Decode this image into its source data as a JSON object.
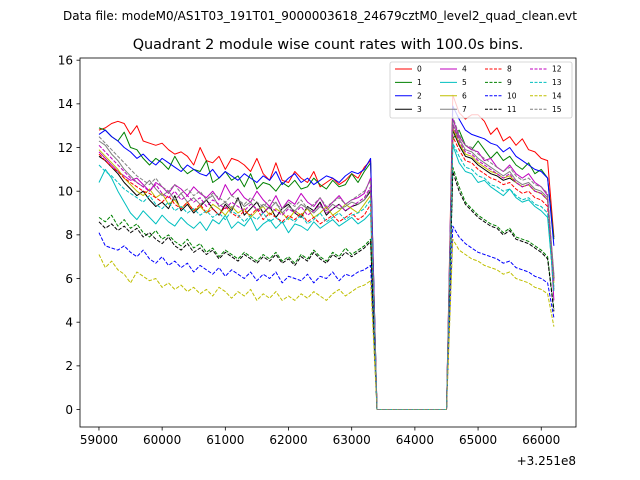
{
  "chart_data": {
    "type": "line",
    "suptitle": "Data file: modeM0/AS1T03_191T01_9000003618_24679cztM0_level2_quad_clean.evt",
    "title": "Quadrant 2 module wise count rates with 100.0s bins.",
    "xlabel": "",
    "ylabel": "",
    "x_offset_label": "+3.251e8",
    "xlim": [
      58700,
      66550
    ],
    "ylim": [
      -0.8,
      16.1
    ],
    "xticks": [
      59000,
      60000,
      61000,
      62000,
      63000,
      64000,
      65000,
      66000
    ],
    "yticks": [
      0,
      2,
      4,
      6,
      8,
      10,
      12,
      14,
      16
    ],
    "legend_position": "upper-right",
    "legend_columns": 4,
    "segments": [
      {
        "x_start": 59000,
        "x_end": 63300,
        "step": 100
      },
      {
        "x_start": 63400,
        "x_end": 64500,
        "step": 100
      },
      {
        "x_start": 64600,
        "x_end": 66200,
        "step": 100
      }
    ],
    "gap_value": 0,
    "series": [
      {
        "name": "0",
        "color": "#ff0000",
        "dash": "solid",
        "seg1": [
          12.8,
          12.9,
          13.1,
          13.2,
          13.1,
          12.6,
          13.0,
          12.3,
          12.2,
          12.1,
          12.2,
          11.9,
          11.7,
          11.8,
          11.6,
          11.2,
          12.0,
          11.4,
          11.3,
          11.6,
          11.0,
          11.5,
          11.4,
          11.2,
          10.9,
          11.5,
          10.8,
          10.5,
          11.3,
          10.5,
          10.4,
          10.9,
          10.6,
          10.4,
          10.9,
          10.2,
          10.4,
          10.6,
          10.3,
          10.5,
          10.8,
          10.6,
          11.1,
          11.4
        ],
        "seg3": [
          14.4,
          13.6,
          13.3,
          13.5,
          13.5,
          13.2,
          12.6,
          12.9,
          12.3,
          12.5,
          12.1,
          12.4,
          11.9,
          11.8,
          11.5,
          11.4,
          7.9
        ]
      },
      {
        "name": "1",
        "color": "#008000",
        "dash": "solid",
        "seg1": [
          12.9,
          12.8,
          12.5,
          12.3,
          12.7,
          12.0,
          11.9,
          11.5,
          11.2,
          11.5,
          11.3,
          11.0,
          11.6,
          11.1,
          10.8,
          11.0,
          10.9,
          11.4,
          10.4,
          10.6,
          10.9,
          10.5,
          10.7,
          10.2,
          10.8,
          10.1,
          10.4,
          10.3,
          10.0,
          10.4,
          10.2,
          10.5,
          10.1,
          10.2,
          10.6,
          10.3,
          10.1,
          10.5,
          10.2,
          10.3,
          10.8,
          10.4,
          10.9,
          11.3
        ],
        "seg3": [
          12.4,
          12.8,
          12.1,
          11.9,
          12.3,
          11.9,
          11.5,
          11.8,
          11.4,
          11.6,
          11.2,
          11.0,
          11.3,
          10.8,
          11.0,
          10.6,
          7.8
        ]
      },
      {
        "name": "2",
        "color": "#0000ff",
        "dash": "solid",
        "seg1": [
          12.6,
          12.8,
          12.5,
          12.3,
          12.0,
          11.8,
          11.5,
          11.7,
          11.4,
          11.2,
          11.5,
          11.3,
          11.1,
          10.9,
          11.2,
          11.0,
          10.8,
          10.7,
          11.0,
          10.6,
          10.9,
          10.7,
          10.5,
          10.8,
          10.6,
          10.4,
          10.7,
          10.5,
          10.9,
          10.3,
          10.6,
          10.8,
          10.4,
          10.6,
          10.3,
          10.5,
          10.7,
          10.6,
          10.4,
          10.7,
          10.9,
          10.8,
          11.0,
          11.5
        ],
        "seg3": [
          13.9,
          13.3,
          12.8,
          12.6,
          12.5,
          12.4,
          12.2,
          12.1,
          11.8,
          12.0,
          11.6,
          11.4,
          11.2,
          11.0,
          10.9,
          10.6,
          7.5
        ]
      },
      {
        "name": "3",
        "color": "#000000",
        "dash": "solid",
        "seg1": [
          11.6,
          11.4,
          11.1,
          10.8,
          10.4,
          10.1,
          9.8,
          10.0,
          9.6,
          9.3,
          9.5,
          9.2,
          9.8,
          9.1,
          9.4,
          9.0,
          9.3,
          9.6,
          9.2,
          8.9,
          9.4,
          9.1,
          9.7,
          8.9,
          9.2,
          9.5,
          9.0,
          9.3,
          8.8,
          9.2,
          9.4,
          9.0,
          8.8,
          9.3,
          9.1,
          9.5,
          8.9,
          9.2,
          9.4,
          9.1,
          9.3,
          9.4,
          9.6,
          10.0
        ],
        "seg3": [
          12.8,
          12.1,
          11.6,
          11.5,
          11.2,
          11.0,
          10.8,
          10.7,
          10.5,
          10.6,
          10.4,
          10.2,
          10.3,
          10.0,
          9.9,
          9.6,
          6.0
        ]
      },
      {
        "name": "4",
        "color": "#bf00bf",
        "dash": "solid",
        "seg1": [
          11.8,
          11.5,
          11.2,
          10.9,
          10.7,
          10.5,
          10.6,
          10.3,
          10.0,
          10.4,
          10.2,
          9.9,
          10.3,
          10.1,
          9.8,
          10.2,
          9.9,
          9.7,
          10.0,
          9.6,
          10.3,
          9.8,
          10.1,
          9.7,
          9.5,
          10.0,
          9.6,
          9.3,
          9.8,
          9.2,
          9.6,
          9.4,
          9.9,
          9.5,
          9.3,
          9.7,
          9.2,
          9.5,
          9.8,
          9.4,
          9.6,
          9.7,
          9.9,
          10.6
        ],
        "seg3": [
          13.3,
          12.5,
          12.1,
          11.9,
          11.8,
          11.4,
          11.5,
          11.1,
          10.9,
          11.2,
          10.8,
          10.6,
          10.8,
          10.4,
          10.2,
          9.8,
          5.0
        ]
      },
      {
        "name": "5",
        "color": "#00bfbf",
        "dash": "solid",
        "seg1": [
          10.4,
          11.0,
          10.6,
          10.0,
          9.5,
          9.0,
          8.7,
          9.1,
          8.8,
          8.5,
          8.9,
          8.6,
          8.4,
          8.8,
          8.5,
          8.3,
          8.6,
          8.2,
          8.7,
          8.5,
          8.9,
          8.3,
          8.6,
          8.4,
          8.8,
          8.2,
          8.5,
          8.7,
          8.3,
          8.6,
          8.1,
          8.5,
          8.4,
          8.2,
          8.6,
          8.3,
          8.5,
          8.7,
          8.4,
          8.6,
          8.8,
          8.5,
          8.7,
          9.0
        ],
        "seg3": [
          12.1,
          11.3,
          10.9,
          10.8,
          10.4,
          10.5,
          10.2,
          10.0,
          9.8,
          10.1,
          9.7,
          9.5,
          9.6,
          9.3,
          9.1,
          8.8,
          5.6
        ]
      },
      {
        "name": "6",
        "color": "#bfbf00",
        "dash": "solid",
        "seg1": [
          11.9,
          11.6,
          11.3,
          11.0,
          10.6,
          10.3,
          10.0,
          9.8,
          10.1,
          9.7,
          9.9,
          9.4,
          9.6,
          9.2,
          9.5,
          9.1,
          9.3,
          9.0,
          9.4,
          9.2,
          8.9,
          9.3,
          9.0,
          9.2,
          8.8,
          9.1,
          9.3,
          8.9,
          9.2,
          9.0,
          8.7,
          9.1,
          8.9,
          9.2,
          8.8,
          9.0,
          9.3,
          8.9,
          9.1,
          9.4,
          9.2,
          9.0,
          9.4,
          9.8
        ],
        "seg3": [
          12.9,
          12.2,
          11.7,
          11.6,
          11.3,
          11.1,
          10.9,
          10.8,
          10.6,
          10.7,
          10.4,
          10.2,
          10.3,
          10.0,
          9.9,
          9.6,
          5.8
        ]
      },
      {
        "name": "7",
        "color": "#808080",
        "dash": "solid",
        "seg1": [
          12.3,
          12.1,
          11.7,
          11.4,
          11.0,
          10.7,
          10.4,
          10.2,
          10.5,
          10.1,
          9.8,
          10.0,
          9.6,
          9.9,
          9.5,
          9.7,
          9.4,
          9.6,
          9.8,
          9.3,
          9.5,
          9.2,
          9.6,
          9.3,
          9.5,
          9.1,
          9.4,
          9.2,
          9.5,
          9.0,
          9.3,
          9.1,
          9.4,
          9.2,
          9.0,
          9.3,
          9.1,
          9.4,
          9.2,
          9.3,
          9.5,
          9.4,
          9.6,
          10.1
        ],
        "seg3": [
          13.1,
          12.4,
          11.9,
          11.8,
          11.5,
          11.3,
          11.1,
          10.9,
          10.7,
          10.9,
          10.5,
          10.3,
          10.4,
          10.1,
          10.0,
          9.7,
          6.2
        ]
      },
      {
        "name": "8",
        "color": "#ff0000",
        "dash": "dashed",
        "seg1": [
          11.7,
          11.4,
          11.1,
          10.9,
          10.6,
          10.4,
          10.2,
          10.0,
          9.9,
          9.7,
          9.5,
          9.8,
          9.4,
          9.2,
          9.5,
          9.1,
          9.4,
          9.0,
          9.2,
          8.9,
          9.3,
          9.0,
          8.8,
          9.1,
          8.9,
          9.2,
          8.7,
          9.0,
          8.8,
          8.6,
          8.9,
          8.7,
          9.0,
          8.6,
          8.8,
          8.5,
          8.7,
          8.9,
          8.6,
          8.8,
          9.0,
          8.7,
          8.9,
          9.4
        ],
        "seg3": [
          12.5,
          11.9,
          11.4,
          11.3,
          11.0,
          10.8,
          10.6,
          10.5,
          10.3,
          10.4,
          10.1,
          9.9,
          10.0,
          9.7,
          9.6,
          9.3,
          5.5
        ]
      },
      {
        "name": "9",
        "color": "#008000",
        "dash": "dashed",
        "seg1": [
          8.8,
          8.6,
          8.9,
          8.4,
          8.7,
          8.3,
          8.5,
          8.1,
          7.9,
          8.2,
          7.8,
          8.0,
          7.7,
          7.5,
          7.8,
          7.4,
          7.6,
          7.2,
          7.4,
          7.0,
          7.3,
          7.1,
          6.9,
          7.2,
          7.0,
          6.8,
          7.1,
          6.9,
          7.2,
          6.8,
          7.0,
          6.7,
          7.1,
          6.9,
          7.3,
          7.0,
          6.8,
          7.2,
          7.0,
          7.4,
          7.1,
          7.3,
          7.5,
          7.8
        ],
        "seg3": [
          11.1,
          10.2,
          9.5,
          9.2,
          8.9,
          8.7,
          8.5,
          8.4,
          8.1,
          8.3,
          7.9,
          7.8,
          7.7,
          7.5,
          7.3,
          7.0,
          4.6
        ]
      },
      {
        "name": "10",
        "color": "#0000ff",
        "dash": "dashed",
        "seg1": [
          8.1,
          7.5,
          7.4,
          7.3,
          7.5,
          7.2,
          7.0,
          7.3,
          6.9,
          6.7,
          7.0,
          6.6,
          6.8,
          6.5,
          6.7,
          6.3,
          6.6,
          6.4,
          6.2,
          6.5,
          6.1,
          6.4,
          6.2,
          6.0,
          6.3,
          5.9,
          6.2,
          6.0,
          6.3,
          5.8,
          6.1,
          6.0,
          5.9,
          6.2,
          5.8,
          6.1,
          6.0,
          6.3,
          5.9,
          6.2,
          6.1,
          6.3,
          6.4,
          6.6
        ],
        "seg3": [
          8.4,
          7.9,
          7.6,
          7.4,
          7.2,
          7.1,
          7.0,
          6.9,
          6.7,
          6.8,
          6.5,
          6.4,
          6.3,
          6.1,
          6.0,
          5.8,
          4.2
        ]
      },
      {
        "name": "11",
        "color": "#000000",
        "dash": "dashed",
        "seg1": [
          8.6,
          8.3,
          8.5,
          8.2,
          8.4,
          8.1,
          8.3,
          7.9,
          8.1,
          7.8,
          7.6,
          7.9,
          7.5,
          7.3,
          7.6,
          7.2,
          7.4,
          7.1,
          7.3,
          6.9,
          7.2,
          7.0,
          6.8,
          7.1,
          6.9,
          6.7,
          7.0,
          6.8,
          7.1,
          6.7,
          6.9,
          6.6,
          7.0,
          6.8,
          7.2,
          6.9,
          6.7,
          7.1,
          6.9,
          7.2,
          7.0,
          7.2,
          7.4,
          7.7
        ],
        "seg3": [
          10.9,
          10.0,
          9.4,
          9.1,
          8.8,
          8.6,
          8.4,
          8.3,
          8.0,
          8.2,
          7.8,
          7.7,
          7.6,
          7.4,
          7.2,
          6.9,
          4.5
        ]
      },
      {
        "name": "12",
        "color": "#bf00bf",
        "dash": "dashed",
        "seg1": [
          12.1,
          11.8,
          11.5,
          11.2,
          10.9,
          10.6,
          10.4,
          10.2,
          10.0,
          10.3,
          9.9,
          9.7,
          10.0,
          9.6,
          9.8,
          9.5,
          9.7,
          9.3,
          9.6,
          9.4,
          9.2,
          9.5,
          9.3,
          9.1,
          9.4,
          9.2,
          9.0,
          9.3,
          9.1,
          8.9,
          9.2,
          9.0,
          9.3,
          8.9,
          9.1,
          9.4,
          9.0,
          9.2,
          9.4,
          9.1,
          9.3,
          9.5,
          9.7,
          10.2
        ],
        "seg3": [
          13.0,
          12.3,
          11.8,
          11.7,
          11.4,
          11.2,
          11.0,
          10.8,
          10.6,
          10.8,
          10.4,
          10.2,
          10.3,
          10.0,
          9.9,
          9.6,
          5.9
        ]
      },
      {
        "name": "13",
        "color": "#00bfbf",
        "dash": "dashed",
        "seg1": [
          11.2,
          10.9,
          10.7,
          10.4,
          10.1,
          9.9,
          9.7,
          9.5,
          9.8,
          9.4,
          9.2,
          9.5,
          9.1,
          9.3,
          9.0,
          9.2,
          8.9,
          9.1,
          8.8,
          9.0,
          8.7,
          9.1,
          8.9,
          8.6,
          8.9,
          8.7,
          9.0,
          8.6,
          8.8,
          8.5,
          8.8,
          8.6,
          8.9,
          8.5,
          8.7,
          9.0,
          8.6,
          8.8,
          9.0,
          8.7,
          8.9,
          9.0,
          9.2,
          9.6
        ],
        "seg3": [
          12.2,
          11.6,
          11.1,
          11.0,
          10.7,
          10.6,
          10.3,
          10.2,
          10.0,
          10.1,
          9.8,
          9.6,
          9.7,
          9.4,
          9.3,
          9.0,
          5.4
        ]
      },
      {
        "name": "14",
        "color": "#bfbf00",
        "dash": "dashed",
        "seg1": [
          7.1,
          6.5,
          6.8,
          6.4,
          6.2,
          5.8,
          6.3,
          6.1,
          5.9,
          6.0,
          5.6,
          5.8,
          5.5,
          5.7,
          5.4,
          5.6,
          5.3,
          5.5,
          5.2,
          5.6,
          5.4,
          5.1,
          5.4,
          5.2,
          5.5,
          5.0,
          5.3,
          5.1,
          5.4,
          5.0,
          5.2,
          5.0,
          5.3,
          5.1,
          5.4,
          5.2,
          5.0,
          5.3,
          5.5,
          5.2,
          5.4,
          5.6,
          5.7,
          5.9
        ],
        "seg3": [
          7.8,
          7.3,
          7.1,
          6.9,
          6.8,
          6.6,
          6.5,
          6.4,
          6.2,
          6.3,
          6.0,
          5.9,
          5.8,
          5.6,
          5.5,
          5.3,
          3.8
        ]
      },
      {
        "name": "15",
        "color": "#808080",
        "dash": "dashed",
        "seg1": [
          12.5,
          12.2,
          11.9,
          11.6,
          11.3,
          11.0,
          10.7,
          10.5,
          10.3,
          10.6,
          10.2,
          10.0,
          10.3,
          9.9,
          10.1,
          9.8,
          10.0,
          9.6,
          9.9,
          9.7,
          9.5,
          9.8,
          9.6,
          9.4,
          9.7,
          9.5,
          9.3,
          9.6,
          9.4,
          9.2,
          9.5,
          9.3,
          9.6,
          9.2,
          9.4,
          9.7,
          9.3,
          9.5,
          9.7,
          9.4,
          9.6,
          9.8,
          10.0,
          10.5
        ],
        "seg3": [
          13.4,
          12.6,
          12.1,
          12.0,
          11.7,
          11.5,
          11.3,
          11.1,
          10.9,
          11.1,
          10.7,
          10.5,
          10.6,
          10.3,
          10.2,
          9.9,
          6.1
        ]
      }
    ]
  }
}
